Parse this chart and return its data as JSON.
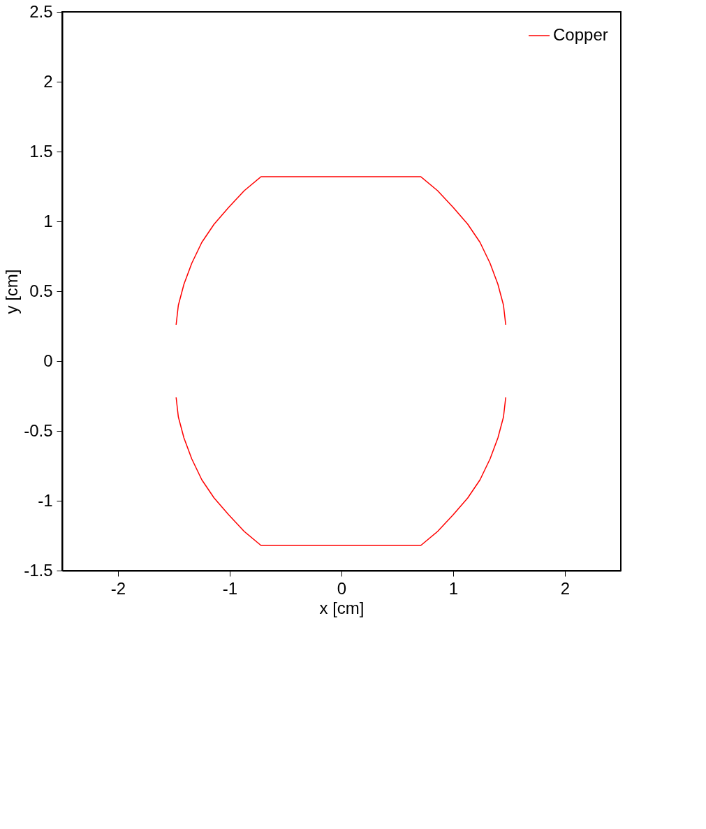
{
  "chart_data": {
    "type": "line",
    "xlabel": "x [cm]",
    "ylabel": "y [cm]",
    "xlim": [
      -2.5,
      2.5
    ],
    "xticks": [
      -2,
      -1,
      0,
      1,
      2
    ],
    "ylim": [
      -1.5,
      2.5
    ],
    "yticks": [
      -1.5,
      -1,
      -0.5,
      0,
      0.5,
      1,
      1.5,
      2,
      2.5
    ],
    "grid": false,
    "legend": "top right",
    "marker": "none",
    "line_style": "solid",
    "series": [
      {
        "name": "Copper",
        "color": "#ff0000",
        "x": [
          -1.48,
          -1.46,
          -1.41,
          -1.34,
          -1.25,
          -1.14,
          -1.01,
          -0.87,
          -0.72,
          0.71,
          0.86,
          1.0,
          1.13,
          1.24,
          1.33,
          1.4,
          1.45,
          1.47,
          null,
          1.47,
          1.45,
          1.4,
          1.33,
          1.24,
          1.13,
          1.0,
          0.86,
          0.71,
          -0.72,
          -0.87,
          -1.01,
          -1.14,
          -1.25,
          -1.34,
          -1.41,
          -1.46,
          -1.48
        ],
        "values": [
          0.26,
          0.4,
          0.55,
          0.7,
          0.85,
          0.98,
          1.1,
          1.22,
          1.32,
          1.32,
          1.22,
          1.1,
          0.98,
          0.85,
          0.7,
          0.55,
          0.4,
          0.26,
          null,
          -0.26,
          -0.4,
          -0.55,
          -0.7,
          -0.85,
          -0.98,
          -1.1,
          -1.22,
          -1.32,
          -1.32,
          -1.22,
          -1.1,
          -0.98,
          -0.85,
          -0.7,
          -0.55,
          -0.4,
          -0.26
        ]
      }
    ]
  }
}
